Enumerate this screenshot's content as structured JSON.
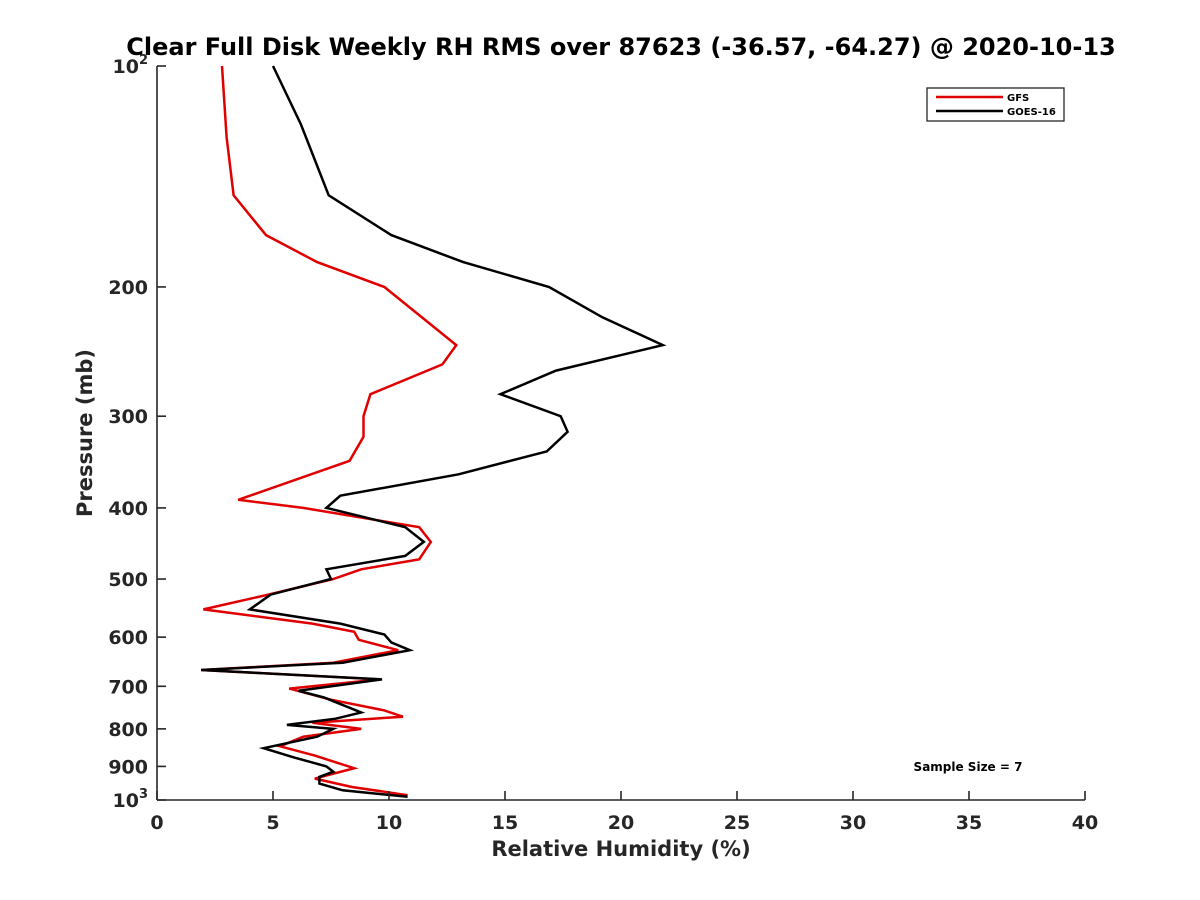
{
  "chart_data": {
    "type": "line",
    "title": "Clear Full Disk Weekly RH RMS over 87623 (-36.57, -64.27) @ 2020-10-13",
    "xlabel": "Relative Humidity (%)",
    "ylabel": "Pressure (mb)",
    "xlim": [
      0,
      40
    ],
    "ylim": [
      100,
      1000
    ],
    "y_scale": "log",
    "y_reversed": true,
    "x_ticks": [
      "0",
      "5",
      "10",
      "15",
      "20",
      "25",
      "30",
      "35",
      "40"
    ],
    "y_ticks": [
      {
        "value": 100,
        "base": "10",
        "exp": "2"
      },
      {
        "value": 200,
        "label": "200"
      },
      {
        "value": 300,
        "label": "300"
      },
      {
        "value": 400,
        "label": "400"
      },
      {
        "value": 500,
        "label": "500"
      },
      {
        "value": 600,
        "label": "600"
      },
      {
        "value": 700,
        "label": "700"
      },
      {
        "value": 800,
        "label": "800"
      },
      {
        "value": 900,
        "label": "900"
      },
      {
        "value": 1000,
        "base": "10",
        "exp": "3"
      }
    ],
    "legend_position": "top-right",
    "grid": false,
    "annotation": "Sample Size = 7",
    "series": [
      {
        "name": "GFS",
        "color": "#e00000",
        "points": [
          [
            2.8,
            100
          ],
          [
            3.0,
            125
          ],
          [
            3.3,
            150
          ],
          [
            4.7,
            170
          ],
          [
            6.9,
            185
          ],
          [
            9.8,
            200
          ],
          [
            12.9,
            240
          ],
          [
            12.3,
            255
          ],
          [
            9.2,
            280
          ],
          [
            8.9,
            300
          ],
          [
            8.9,
            320
          ],
          [
            8.3,
            345
          ],
          [
            3.5,
            390
          ],
          [
            6.3,
            400
          ],
          [
            11.3,
            425
          ],
          [
            11.8,
            445
          ],
          [
            11.3,
            470
          ],
          [
            8.8,
            485
          ],
          [
            7.6,
            500
          ],
          [
            4.8,
            525
          ],
          [
            2.0,
            550
          ],
          [
            6.7,
            575
          ],
          [
            8.5,
            590
          ],
          [
            8.7,
            605
          ],
          [
            10.4,
            625
          ],
          [
            7.6,
            650
          ],
          [
            1.9,
            665
          ],
          [
            9.6,
            685
          ],
          [
            5.7,
            705
          ],
          [
            7.5,
            730
          ],
          [
            9.8,
            755
          ],
          [
            10.6,
            770
          ],
          [
            6.7,
            785
          ],
          [
            8.8,
            800
          ],
          [
            6.3,
            820
          ],
          [
            5.3,
            845
          ],
          [
            6.8,
            870
          ],
          [
            8.5,
            905
          ],
          [
            6.8,
            935
          ],
          [
            8.4,
            960
          ],
          [
            10.8,
            985
          ]
        ]
      },
      {
        "name": "GOES-16",
        "color": "#000000",
        "points": [
          [
            5.0,
            100
          ],
          [
            6.2,
            120
          ],
          [
            7.4,
            150
          ],
          [
            10.1,
            170
          ],
          [
            13.2,
            185
          ],
          [
            16.9,
            200
          ],
          [
            19.2,
            220
          ],
          [
            21.8,
            240
          ],
          [
            17.2,
            260
          ],
          [
            14.8,
            280
          ],
          [
            17.4,
            300
          ],
          [
            17.7,
            315
          ],
          [
            16.8,
            335
          ],
          [
            13.0,
            360
          ],
          [
            7.9,
            385
          ],
          [
            7.3,
            400
          ],
          [
            10.7,
            425
          ],
          [
            11.5,
            445
          ],
          [
            10.7,
            465
          ],
          [
            7.3,
            485
          ],
          [
            7.5,
            500
          ],
          [
            4.9,
            525
          ],
          [
            4.0,
            550
          ],
          [
            7.9,
            575
          ],
          [
            9.8,
            595
          ],
          [
            10.1,
            610
          ],
          [
            10.9,
            625
          ],
          [
            8.0,
            650
          ],
          [
            1.9,
            665
          ],
          [
            9.7,
            685
          ],
          [
            6.1,
            710
          ],
          [
            7.2,
            725
          ],
          [
            8.8,
            760
          ],
          [
            7.7,
            775
          ],
          [
            5.6,
            790
          ],
          [
            7.6,
            800
          ],
          [
            6.9,
            820
          ],
          [
            4.6,
            850
          ],
          [
            5.9,
            875
          ],
          [
            7.3,
            900
          ],
          [
            7.6,
            915
          ],
          [
            7.0,
            930
          ],
          [
            7.0,
            950
          ],
          [
            8.0,
            970
          ],
          [
            10.8,
            990
          ]
        ]
      }
    ]
  }
}
